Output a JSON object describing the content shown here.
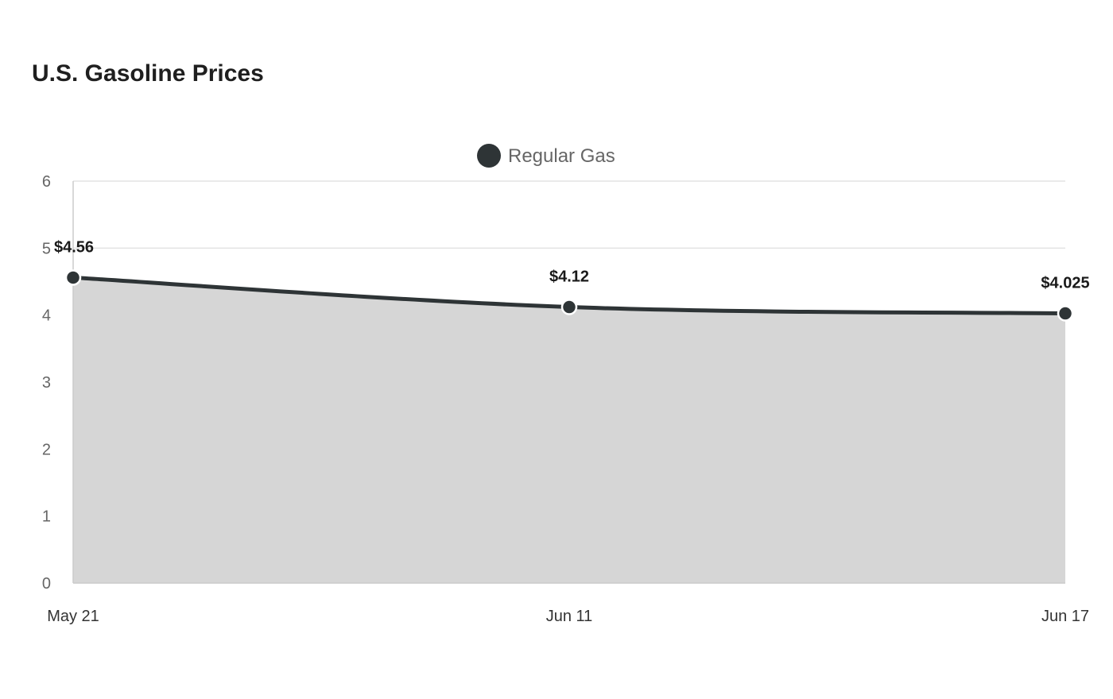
{
  "chart_data": {
    "type": "area",
    "title": "U.S. Gasoline Prices",
    "xlabel": "",
    "ylabel": "",
    "categories": [
      "May 21",
      "Jun 11",
      "Jun 17"
    ],
    "series": [
      {
        "name": "Regular Gas",
        "values": [
          4.56,
          4.12,
          4.025
        ],
        "labels": [
          "$4.56",
          "$4.12",
          "$4.025"
        ]
      }
    ],
    "ylim": [
      0,
      6
    ],
    "yticks": [
      "0",
      "1",
      "2",
      "3",
      "4",
      "5",
      "6"
    ],
    "grid": true,
    "legend_position": "top-center",
    "colors": {
      "line": "#2e3436",
      "fill": "#d6d6d6",
      "grid": "#e3e3e3",
      "axis": "#cccccc"
    }
  }
}
